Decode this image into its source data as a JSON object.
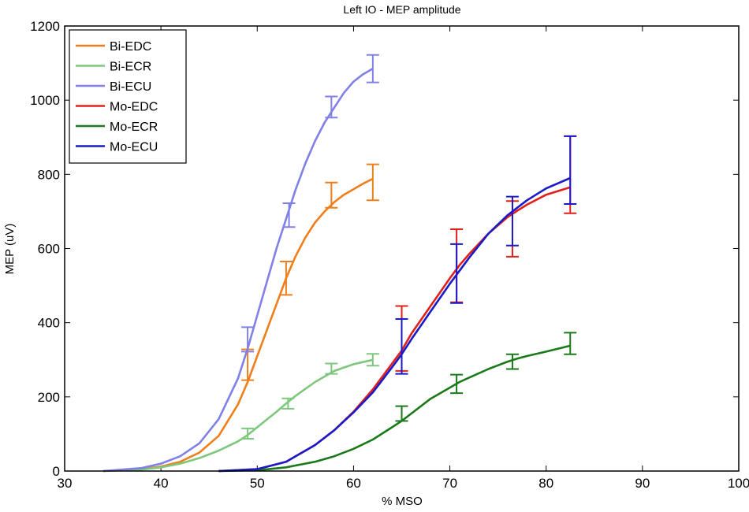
{
  "chart_data": {
    "type": "line",
    "title": "Left IO - MEP amplitude",
    "xlabel": "% MSO",
    "ylabel": "MEP (uV)",
    "xlim": [
      30,
      100
    ],
    "ylim": [
      0,
      1200
    ],
    "xticks": [
      30,
      40,
      50,
      60,
      70,
      80,
      90,
      100
    ],
    "yticks": [
      0,
      200,
      400,
      600,
      800,
      1000,
      1200
    ],
    "legend_position": "top-left",
    "series": [
      {
        "name": "Bi-EDC",
        "color": "#f07f1b",
        "curve": {
          "x": [
            34,
            38,
            40,
            42,
            44,
            46,
            48,
            49,
            50,
            51,
            52,
            53,
            54,
            55,
            56,
            57,
            58,
            59,
            60,
            61,
            62
          ],
          "y": [
            0,
            5,
            12,
            25,
            50,
            95,
            180,
            240,
            310,
            380,
            450,
            520,
            580,
            630,
            670,
            700,
            725,
            745,
            760,
            775,
            788
          ]
        },
        "errorbars": [
          {
            "x": 49,
            "y": 285,
            "lo": 245,
            "hi": 328
          },
          {
            "x": 53,
            "y": 520,
            "lo": 475,
            "hi": 565
          },
          {
            "x": 57.7,
            "y": 745,
            "lo": 710,
            "hi": 778
          },
          {
            "x": 62,
            "y": 785,
            "lo": 730,
            "hi": 827
          }
        ]
      },
      {
        "name": "Bi-ECR",
        "color": "#7ec77c",
        "curve": {
          "x": [
            34,
            38,
            40,
            42,
            44,
            46,
            48,
            49,
            50,
            52,
            53,
            54,
            56,
            58,
            60,
            62
          ],
          "y": [
            0,
            4,
            10,
            20,
            35,
            55,
            80,
            97,
            118,
            160,
            182,
            203,
            240,
            270,
            288,
            300
          ]
        },
        "errorbars": [
          {
            "x": 49,
            "y": 100,
            "lo": 87,
            "hi": 115
          },
          {
            "x": 53.2,
            "y": 182,
            "lo": 168,
            "hi": 196
          },
          {
            "x": 57.7,
            "y": 275,
            "lo": 262,
            "hi": 290
          },
          {
            "x": 62,
            "y": 300,
            "lo": 284,
            "hi": 316
          }
        ]
      },
      {
        "name": "Bi-ECU",
        "color": "#8080e8",
        "curve": {
          "x": [
            34,
            38,
            40,
            42,
            44,
            46,
            48,
            49,
            50,
            51,
            52,
            53,
            54,
            55,
            56,
            57,
            58,
            59,
            60,
            61,
            62
          ],
          "y": [
            0,
            8,
            20,
            40,
            75,
            140,
            250,
            330,
            420,
            510,
            600,
            680,
            760,
            830,
            890,
            940,
            980,
            1020,
            1050,
            1070,
            1085
          ]
        },
        "errorbars": [
          {
            "x": 49,
            "y": 355,
            "lo": 322,
            "hi": 388
          },
          {
            "x": 53.3,
            "y": 690,
            "lo": 658,
            "hi": 722
          },
          {
            "x": 57.7,
            "y": 980,
            "lo": 953,
            "hi": 1010
          },
          {
            "x": 62,
            "y": 1085,
            "lo": 1048,
            "hi": 1122
          }
        ]
      },
      {
        "name": "Mo-EDC",
        "color": "#e0201b",
        "curve": {
          "x": [
            46,
            50,
            53,
            56,
            58,
            60,
            62,
            64,
            65,
            66,
            68,
            70,
            71,
            72,
            74,
            76,
            77,
            78,
            80,
            82.5
          ],
          "y": [
            0,
            5,
            25,
            70,
            110,
            160,
            220,
            290,
            325,
            370,
            445,
            520,
            555,
            585,
            640,
            685,
            702,
            718,
            745,
            765
          ]
        },
        "errorbars": [
          {
            "x": 65,
            "y": 325,
            "lo": 270,
            "hi": 445
          },
          {
            "x": 70.7,
            "y": 555,
            "lo": 455,
            "hi": 652
          },
          {
            "x": 76.5,
            "y": 700,
            "lo": 578,
            "hi": 728
          },
          {
            "x": 82.5,
            "y": 765,
            "lo": 695,
            "hi": 903
          }
        ]
      },
      {
        "name": "Mo-ECR",
        "color": "#1a7a1a",
        "curve": {
          "x": [
            46,
            50,
            53,
            56,
            58,
            60,
            62,
            64,
            65,
            66,
            68,
            70,
            71,
            72,
            74,
            76,
            77,
            78,
            80,
            82.5
          ],
          "y": [
            0,
            2,
            10,
            25,
            40,
            60,
            85,
            118,
            135,
            155,
            195,
            225,
            240,
            252,
            275,
            295,
            303,
            310,
            322,
            338
          ]
        },
        "errorbars": [
          {
            "x": 65,
            "y": 155,
            "lo": 135,
            "hi": 175
          },
          {
            "x": 70.7,
            "y": 235,
            "lo": 210,
            "hi": 260
          },
          {
            "x": 76.5,
            "y": 295,
            "lo": 275,
            "hi": 315
          },
          {
            "x": 82.5,
            "y": 343,
            "lo": 315,
            "hi": 373
          }
        ]
      },
      {
        "name": "Mo-ECU",
        "color": "#1a1ac8",
        "curve": {
          "x": [
            46,
            50,
            53,
            56,
            58,
            60,
            62,
            64,
            65,
            66,
            68,
            70,
            71,
            72,
            74,
            76,
            77,
            78,
            80,
            82.5
          ],
          "y": [
            0,
            5,
            25,
            70,
            110,
            158,
            212,
            280,
            315,
            355,
            430,
            505,
            540,
            575,
            640,
            690,
            710,
            730,
            762,
            790
          ]
        },
        "errorbars": [
          {
            "x": 65,
            "y": 330,
            "lo": 262,
            "hi": 410
          },
          {
            "x": 70.7,
            "y": 530,
            "lo": 453,
            "hi": 612
          },
          {
            "x": 76.5,
            "y": 675,
            "lo": 608,
            "hi": 740
          },
          {
            "x": 82.5,
            "y": 790,
            "lo": 720,
            "hi": 903
          }
        ]
      }
    ]
  }
}
